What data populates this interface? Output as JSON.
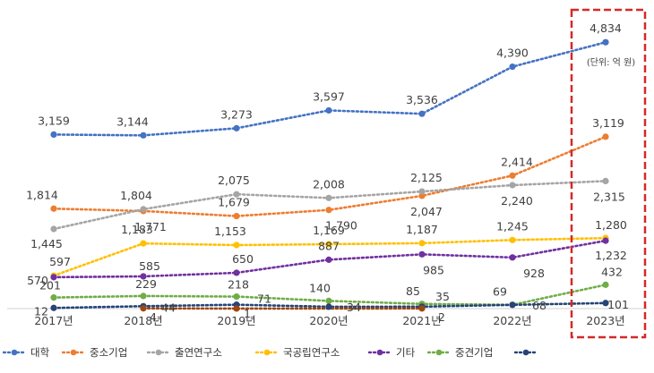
{
  "chart_data": {
    "type": "line",
    "title": "",
    "xlabel": "",
    "ylabel": "",
    "unit_note": "(단위: 억 원)",
    "categories": [
      "2017년",
      "2018년",
      "2019년",
      "2020년",
      "2021년",
      "2022년",
      "2023년"
    ],
    "grid": false,
    "legend_position": "bottom",
    "highlight_category": "2023년",
    "highlight_color": "#d62828",
    "series": [
      {
        "name": "대학",
        "color": "#4472c4",
        "values": [
          3159,
          3144,
          3273,
          3597,
          3536,
          4390,
          4834
        ],
        "labels": [
          "3,159",
          "3,144",
          "3,273",
          "3,597",
          "3,536",
          "4,390",
          "4,834"
        ]
      },
      {
        "name": "중소기업",
        "color": "#ed7d31",
        "values": [
          1814,
          1771,
          1679,
          1790,
          2047,
          2414,
          3119
        ],
        "labels": [
          "1,814",
          "1,771",
          "1,679",
          "1,790",
          "2,047",
          "2,414",
          "3,119"
        ]
      },
      {
        "name": "출연연구소",
        "color": "#a5a5a5",
        "values": [
          1445,
          1804,
          2075,
          2008,
          2125,
          2240,
          2315
        ],
        "labels": [
          "1,445",
          "1,804",
          "2,075",
          "2,008",
          "2,125",
          "2,240",
          "2,315"
        ]
      },
      {
        "name": "국공립연구소",
        "color": "#ffc000",
        "values": [
          597,
          1183,
          1153,
          1169,
          1187,
          1245,
          1280
        ],
        "labels": [
          "597",
          "1,183",
          "1,153",
          "1,169",
          "1,187",
          "1,245",
          "1,280"
        ]
      },
      {
        "name": "기타",
        "color": "#7030a0",
        "values": [
          570,
          585,
          650,
          887,
          985,
          928,
          1232
        ],
        "labels": [
          "570",
          "585",
          "650",
          "887",
          "985",
          "928",
          "1,232"
        ]
      },
      {
        "name": "중견기업",
        "color": "#70ad47",
        "values": [
          201,
          229,
          218,
          140,
          85,
          69,
          432
        ],
        "labels": [
          "201",
          "229",
          "218",
          "140",
          "85",
          "69",
          "432"
        ]
      },
      {
        "name": "",
        "color": "#264478",
        "values": [
          12,
          44,
          71,
          34,
          35,
          68,
          101
        ],
        "labels": [
          "12",
          "44",
          "71",
          "34",
          "35",
          "68",
          "101"
        ]
      },
      {
        "name": "",
        "color": "#9e480e",
        "values": [
          null,
          4,
          1,
          null,
          2,
          null,
          null
        ],
        "labels": [
          "",
          "4",
          "1",
          "",
          "2",
          "",
          ""
        ]
      }
    ]
  }
}
